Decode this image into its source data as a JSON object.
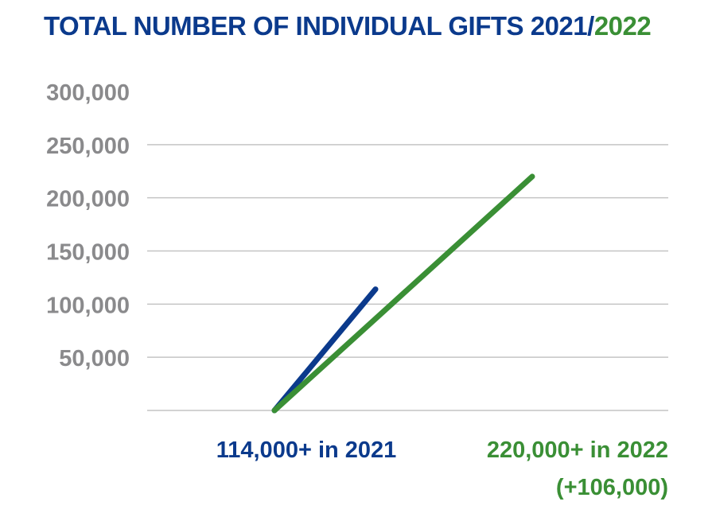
{
  "colors": {
    "series_2021": "#0b3a8c",
    "series_2022": "#3a8f35",
    "axis_text": "#8a8a8c",
    "grid": "#c4c4c4"
  },
  "chart_data": {
    "type": "line",
    "title_parts": [
      "TOTAL NUMBER OF INDIVIDUAL GIFTS 2021/",
      "2022"
    ],
    "ylim": [
      0,
      300000
    ],
    "y_ticks": [
      50000,
      100000,
      150000,
      200000,
      250000,
      300000
    ],
    "y_tick_labels": [
      "50,000",
      "100,000",
      "150,000",
      "200,000",
      "250,000",
      "300,000"
    ],
    "grid": true,
    "series": [
      {
        "key": "2021",
        "x": [
          0,
          1
        ],
        "values": [
          0,
          114000
        ],
        "labels": [
          "114,000+ in 2021"
        ]
      },
      {
        "key": "2022",
        "x": [
          0,
          1
        ],
        "values": [
          0,
          220000
        ],
        "labels": [
          "220,000+ in 2022",
          "(+106,000)"
        ]
      }
    ]
  }
}
